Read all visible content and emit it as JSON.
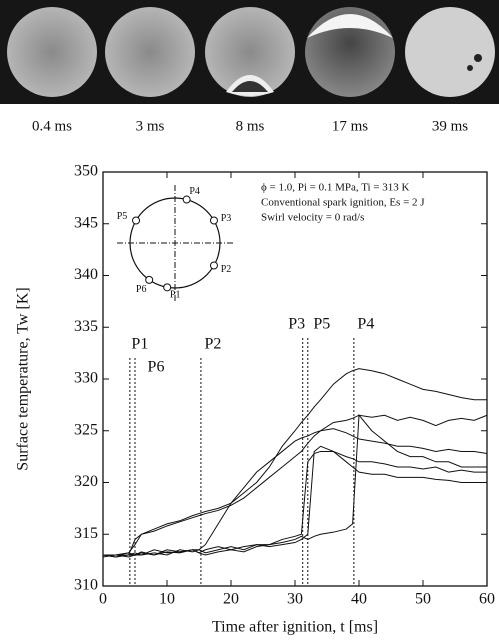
{
  "photos": {
    "labels": [
      "0.4 ms",
      "3 ms",
      "8 ms",
      "17 ms",
      "39 ms"
    ]
  },
  "chart_data": {
    "type": "line",
    "xlabel": "Time after ignition, t [ms]",
    "ylabel": "Surface temperature, Tw [K]",
    "annotations": [
      "ϕ = 1.0, Pi = 0.1 MPa, Ti = 313 K",
      "Conventional spark ignition, Es = 2 J",
      "Swirl velocity = 0 rad/s"
    ],
    "schematic_labels": [
      "P1",
      "P2",
      "P3",
      "P4",
      "P5",
      "P6"
    ],
    "markers": [
      {
        "label": "P1",
        "x": 4.2
      },
      {
        "label": "P6",
        "x": 5.0
      },
      {
        "label": "P2",
        "x": 15.3
      },
      {
        "label": "P3",
        "x": 31.2
      },
      {
        "label": "P5",
        "x": 32.0
      },
      {
        "label": "P4",
        "x": 39.2
      }
    ],
    "xlim": [
      0,
      60
    ],
    "xticks": [
      0,
      10,
      20,
      30,
      40,
      50,
      60
    ],
    "ylim": [
      310,
      350
    ],
    "yticks": [
      310,
      315,
      320,
      325,
      330,
      335,
      340,
      345,
      350
    ],
    "x": [
      0,
      2,
      4,
      5,
      6,
      8,
      10,
      12,
      14,
      15,
      16,
      18,
      20,
      22,
      24,
      26,
      28,
      30,
      31,
      32,
      33,
      34,
      36,
      38,
      39,
      40,
      42,
      44,
      46,
      48,
      50,
      52,
      54,
      56,
      58,
      60
    ],
    "series": [
      {
        "color": "#111",
        "values": [
          313,
          312.8,
          313,
          314.5,
          315,
          315.5,
          316,
          316.3,
          316.8,
          317,
          317.2,
          317.5,
          318,
          319,
          320,
          321.5,
          323.5,
          325,
          325.8,
          326.5,
          327.3,
          328,
          329.5,
          330.5,
          330.8,
          331,
          330.8,
          330.5,
          330,
          329.5,
          329,
          328.8,
          328.5,
          328.2,
          328,
          328
        ]
      },
      {
        "color": "#111",
        "values": [
          313,
          313,
          313.2,
          314,
          315,
          315.3,
          315.8,
          316.2,
          316.6,
          316.8,
          317,
          317.3,
          317.8,
          318.5,
          319.5,
          320.5,
          321.5,
          322.5,
          323,
          323.8,
          324.5,
          325,
          325.8,
          326,
          326.2,
          326.5,
          326.3,
          326.5,
          326,
          326.3,
          326,
          325.5,
          326,
          326.2,
          326,
          326.5
        ]
      },
      {
        "color": "#111",
        "values": [
          313,
          312.8,
          313,
          313,
          313.2,
          313,
          313.3,
          313.2,
          313.5,
          313.5,
          314,
          316,
          318,
          319.5,
          321,
          322,
          323,
          324,
          324.3,
          324.5,
          324.8,
          325,
          325.2,
          324.8,
          324.5,
          324.2,
          324,
          323.8,
          323.5,
          323.5,
          323.3,
          323,
          323.2,
          323,
          323,
          322.8
        ]
      },
      {
        "color": "#111",
        "values": [
          313,
          313,
          312.8,
          313,
          313,
          313.2,
          313,
          313.5,
          313.3,
          313.5,
          313.2,
          313.5,
          313.8,
          313.5,
          314,
          314,
          314.5,
          314.8,
          315,
          322,
          322.8,
          323,
          323,
          322.5,
          322.3,
          322,
          322,
          321.8,
          321.5,
          321.5,
          321.3,
          321.5,
          321,
          321.2,
          321,
          321
        ]
      },
      {
        "color": "#111",
        "values": [
          312.8,
          313,
          313.2,
          313,
          313.3,
          313,
          313.5,
          313.3,
          313.5,
          313.2,
          313.5,
          313.8,
          313.5,
          313.8,
          314,
          313.8,
          314,
          314.2,
          314.5,
          315,
          323,
          323.5,
          323,
          322,
          321.5,
          321,
          320.8,
          320.8,
          320.5,
          320.5,
          320.5,
          320.3,
          320.2,
          320,
          320,
          320
        ]
      },
      {
        "color": "#111",
        "values": [
          313,
          313,
          313,
          313.2,
          313,
          313.5,
          313.2,
          313.3,
          313.5,
          313.2,
          313,
          313.3,
          313.5,
          313.3,
          313.8,
          314,
          314.2,
          314.5,
          314.8,
          314.5,
          314.8,
          315,
          315.2,
          315.5,
          316,
          326.5,
          325,
          324,
          323,
          322.5,
          322.5,
          322,
          322,
          321.5,
          321.5,
          321.5
        ]
      }
    ]
  }
}
